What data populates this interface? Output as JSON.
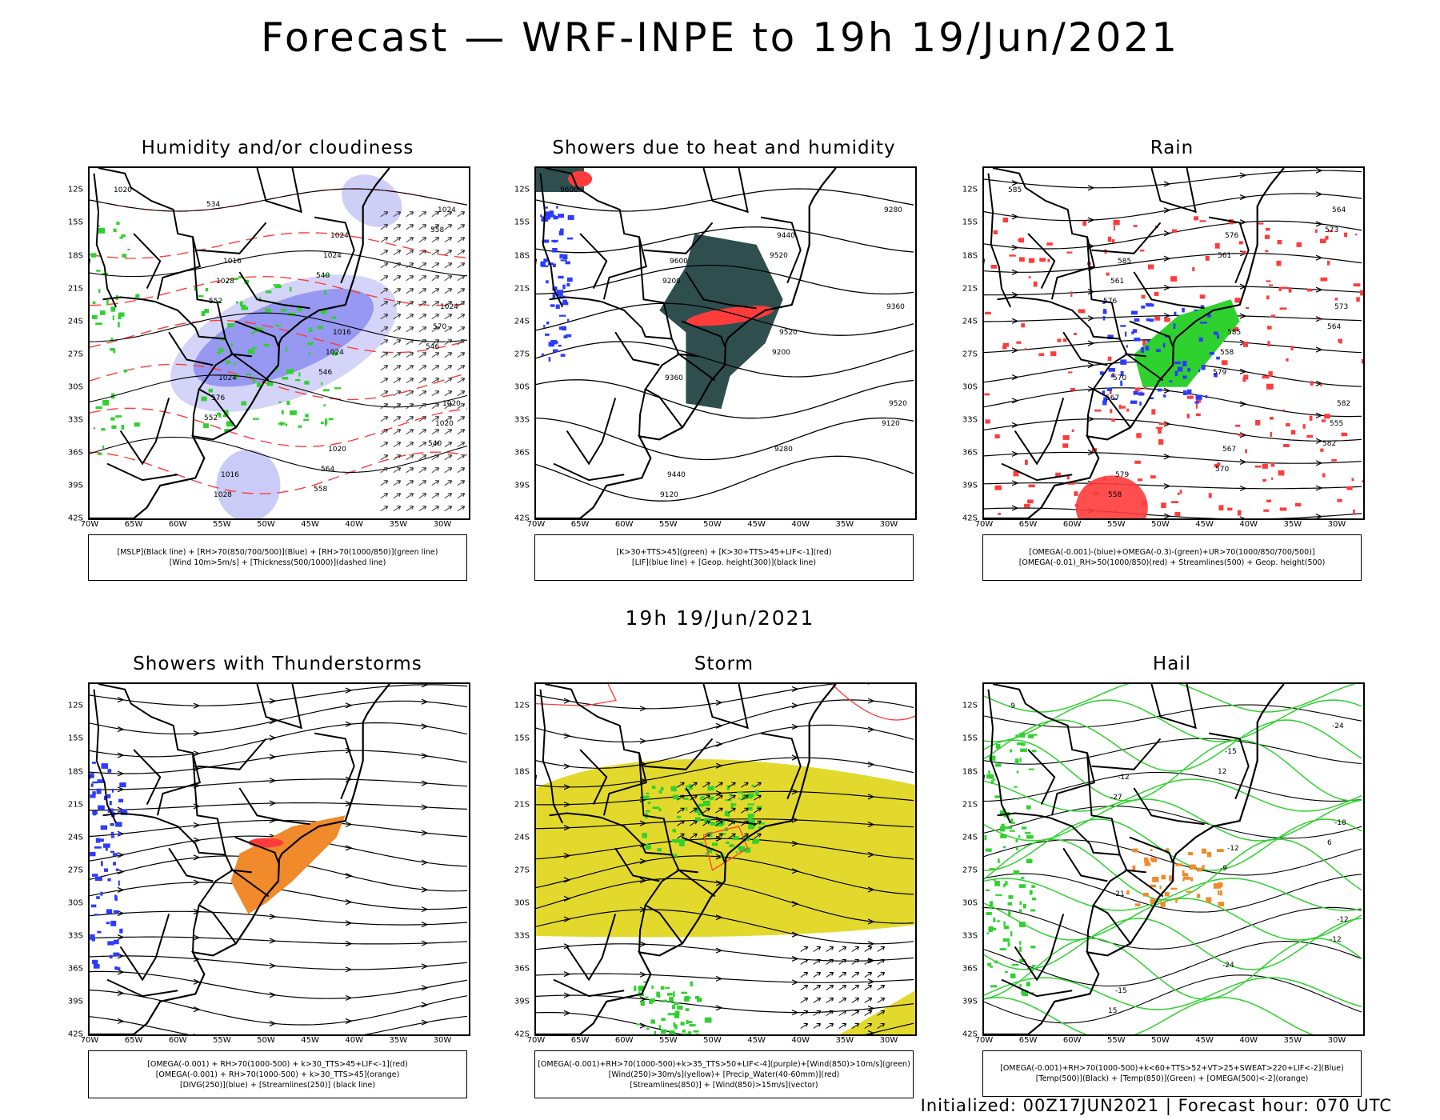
{
  "title": "Forecast — WRF-INPE to 19h 19/Jun/2021",
  "mid_label": "19h 19/Jun/2021",
  "footer": "Initialized: 00Z17JUN2021 | Forecast hour: 070 UTC",
  "axes": {
    "lat_labels": [
      "12S",
      "15S",
      "18S",
      "21S",
      "24S",
      "27S",
      "30S",
      "33S",
      "36S",
      "39S",
      "42S"
    ],
    "lon_labels": [
      "70W",
      "65W",
      "60W",
      "55W",
      "50W",
      "45W",
      "40W",
      "35W",
      "30W"
    ]
  },
  "colors": {
    "red": "#ff3b3b",
    "green": "#2fd12f",
    "blue": "#2c3cff",
    "purple": "#6a6ae0",
    "dark_teal": "#2f4f4f",
    "orange": "#f08a2a",
    "yellow": "#e3d92c"
  },
  "panels": [
    {
      "title": "Humidity and/or cloudiness",
      "legend": [
        "[MSLP](Black line) + [RH>70(850/700/500)](Blue) + [RH>70(1000/850)](green line)",
        "[Wind 10m>5m/s] + [Thickness(500/1000)](dashed line)"
      ],
      "labels": [
        "1020",
        "1016",
        "1016",
        "1020",
        "1016",
        "1024",
        "1024",
        "1024",
        "1020",
        "1024",
        "1028",
        "1024",
        "1020",
        "1028",
        "1024",
        "570",
        "576",
        "564",
        "558",
        "552",
        "546",
        "540",
        "534",
        "540",
        "546",
        "552",
        "558"
      ]
    },
    {
      "title": "Showers due to heat and humidity",
      "legend": [
        "[K>30+TTS>45](green) + [K>30+TTS>45+LIF<-1](red)",
        "[LIF](blue line) + [Geop. height(300)](black line)"
      ],
      "labels": [
        "9600",
        "9600",
        "9520",
        "9520",
        "9440",
        "9440",
        "9360",
        "9360",
        "9280",
        "9280",
        "9200",
        "9200",
        "9120",
        "9120",
        "9520"
      ]
    },
    {
      "title": "Rain",
      "legend": [
        "[OMEGA(-0.001)-(blue)+OMEGA(-0.3)-(green)+UR>70(1000/850/700/500)]",
        "[OMEGA(-0.01)_RH>50(1000/850)(red) + Streamlines(500) + Geop. height(500)"
      ],
      "labels": [
        "585",
        "585",
        "585",
        "582",
        "579",
        "576",
        "573",
        "570",
        "567",
        "564",
        "561",
        "558",
        "555",
        "558",
        "561",
        "564",
        "567",
        "570",
        "573",
        "576",
        "579",
        "582"
      ]
    },
    {
      "title": "Showers with Thunderstorms",
      "legend": [
        "[OMEGA(-0.001) + RH>70(1000-500) + k>30_TTS>45+LIF<-1](red)",
        "[OMEGA(-0.001) + RH>70(1000-500) + k>30_TTS>45](orange)",
        "[DIVG(250)](blue) + [Streamlines(250)] (black line)"
      ],
      "labels": []
    },
    {
      "title": "Storm",
      "legend": [
        "[OMEGA(-0.001)+RH>70(1000-500)+k>35_TTS>50+LIF<-4](purple)+[Wind(850)>10m/s](green)",
        "[Wind(250)>30m/s](yellow)+ [Precip_Water(40-60mm)](red)",
        "[Streamlines(850)] + [Wind(850)>15m/s](vector)"
      ],
      "labels": []
    },
    {
      "title": "Hail",
      "legend": [
        "[OMEGA(-0.001)+RH>70(1000-500)+k<60+TTS>52+VT>25+SWEAT>220+LIF<-2](Blue)",
        "[Temp(500)](Black) + [Temp(850)](Green) + [OMEGA(500)<-2](orange)"
      ],
      "labels": [
        "-9",
        "-12",
        "-12",
        "-12",
        "-15",
        "-15",
        "-18",
        "-21",
        "-24",
        "-24",
        "-27",
        "-9",
        "-12",
        "15",
        "12",
        "6"
      ]
    }
  ]
}
